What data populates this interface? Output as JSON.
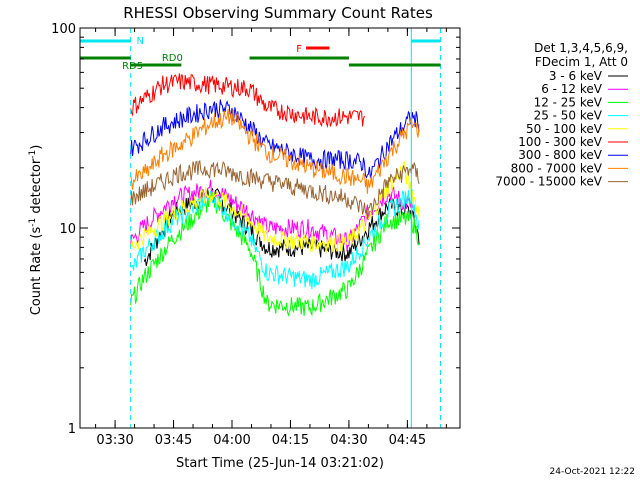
{
  "chart_data": {
    "type": "line",
    "title": "RHESSI Observing Summary Count Rates",
    "xlabel": "Start Time (25-Jun-14 03:21:02)",
    "ylabel_main": "Count Rate (s",
    "ylabel_exp": "-1",
    "ylabel_tail": " detector",
    "ylabel_exp2": "-1",
    "ylabel_close": ")",
    "y_scale": "log",
    "ylim": [
      1,
      100
    ],
    "xlim_minutes": [
      21,
      96
    ],
    "x_ticks": [
      {
        "m": 30,
        "label": "03:30"
      },
      {
        "m": 45,
        "label": "03:45"
      },
      {
        "m": 60,
        "label": "04:00"
      },
      {
        "m": 75,
        "label": "04:15"
      },
      {
        "m": 90,
        "label": "04:30"
      },
      {
        "m": 105,
        "label": "04:45"
      },
      {
        "m": 120,
        "label": "05:00"
      }
    ],
    "y_ticks": [
      {
        "v": 1,
        "label": "1"
      },
      {
        "v": 10,
        "label": "10"
      },
      {
        "v": 100,
        "label": "100"
      }
    ],
    "legend_header": [
      "Det 1,3,4,5,6,9,",
      "FDecim 1, Att 0"
    ],
    "series": [
      {
        "name": "3 - 6 keV",
        "color": "#000000",
        "points": [
          [
            37.5,
            6.8
          ],
          [
            45,
            12
          ],
          [
            55,
            15
          ],
          [
            64.5,
            10
          ],
          [
            69,
            8
          ],
          [
            80,
            8
          ],
          [
            90,
            7.5
          ],
          [
            95,
            10
          ],
          [
            100,
            13
          ],
          [
            106,
            12
          ],
          [
            108,
            9
          ]
        ]
      },
      {
        "name": "6 - 12 keV",
        "color": "#ff00ff",
        "points": [
          [
            34,
            8.5
          ],
          [
            37,
            10
          ],
          [
            45,
            14
          ],
          [
            55,
            16
          ],
          [
            64.5,
            12
          ],
          [
            69,
            10
          ],
          [
            80,
            10
          ],
          [
            90,
            8.5
          ],
          [
            95,
            12
          ],
          [
            100,
            15
          ],
          [
            106,
            13
          ],
          [
            107,
            11
          ]
        ]
      },
      {
        "name": "12 - 25 keV",
        "color": "#00ff00",
        "points": [
          [
            34,
            4.2
          ],
          [
            37,
            5.5
          ],
          [
            45,
            9
          ],
          [
            55,
            14
          ],
          [
            64.5,
            8
          ],
          [
            69,
            4.2
          ],
          [
            80,
            4
          ],
          [
            90,
            5
          ],
          [
            95,
            7.5
          ],
          [
            100,
            11
          ],
          [
            106,
            11
          ],
          [
            108,
            9
          ]
        ]
      },
      {
        "name": "25 - 50 keV",
        "color": "#00ffff",
        "points": [
          [
            34,
            6
          ],
          [
            37,
            7.5
          ],
          [
            45,
            11
          ],
          [
            55,
            14.5
          ],
          [
            64.5,
            9
          ],
          [
            69,
            6
          ],
          [
            80,
            5.5
          ],
          [
            90,
            6.5
          ],
          [
            95,
            9
          ],
          [
            100,
            12
          ],
          [
            106,
            15
          ],
          [
            108,
            10
          ]
        ]
      },
      {
        "name": "50 - 100 keV",
        "color": "#ffff00",
        "points": [
          [
            34,
            8
          ],
          [
            37,
            9
          ],
          [
            45,
            12
          ],
          [
            55,
            15
          ],
          [
            64.5,
            11
          ],
          [
            69,
            9
          ],
          [
            80,
            8.5
          ],
          [
            90,
            8.5
          ],
          [
            95,
            11
          ],
          [
            100,
            16
          ],
          [
            104,
            20
          ],
          [
            108,
            12
          ]
        ]
      },
      {
        "name": "100 - 300 keV",
        "color": "#ff0000",
        "points": [
          [
            34,
            40
          ],
          [
            38,
            45
          ],
          [
            42,
            52
          ],
          [
            46.5,
            54
          ],
          [
            64.5,
            50
          ],
          [
            69,
            40
          ],
          [
            80,
            36
          ],
          [
            90,
            36
          ],
          [
            94,
            36
          ]
        ]
      },
      {
        "name": "300 - 800 keV",
        "color": "#0000ff",
        "points": [
          [
            34,
            25
          ],
          [
            38,
            28
          ],
          [
            42,
            32
          ],
          [
            46.5,
            35
          ],
          [
            55,
            40
          ],
          [
            60,
            39
          ],
          [
            64.5,
            32
          ],
          [
            69,
            26
          ],
          [
            80,
            22
          ],
          [
            90,
            22
          ],
          [
            94,
            21
          ],
          [
            95,
            18
          ],
          [
            100,
            26
          ],
          [
            106,
            36
          ],
          [
            108,
            34
          ]
        ]
      },
      {
        "name": "800 - 7000 keV",
        "color": "#ff8000",
        "points": [
          [
            34,
            17
          ],
          [
            38,
            19
          ],
          [
            42,
            23
          ],
          [
            46.5,
            26
          ],
          [
            55,
            34
          ],
          [
            60,
            36
          ],
          [
            64.5,
            29
          ],
          [
            69,
            24
          ],
          [
            80,
            20
          ],
          [
            90,
            18
          ],
          [
            94,
            17
          ],
          [
            95,
            16
          ],
          [
            100,
            23
          ],
          [
            106,
            33
          ],
          [
            108,
            31
          ]
        ]
      },
      {
        "name": "7000 - 15000 keV",
        "color": "#996633",
        "points": [
          [
            34,
            14
          ],
          [
            46.5,
            19
          ],
          [
            55,
            20
          ],
          [
            64.5,
            18
          ],
          [
            90,
            14
          ],
          [
            95,
            12
          ],
          [
            100,
            17
          ],
          [
            106,
            20
          ],
          [
            108,
            18
          ]
        ]
      }
    ],
    "annotations": {
      "night_label": "N",
      "rd0_label": "RD0",
      "rd5_label": "RD5",
      "flare_label": "F"
    },
    "attenuator_bars": [
      [
        21,
        34
      ],
      [
        34,
        47
      ],
      [
        64.5,
        90
      ],
      [
        90,
        113.5
      ]
    ],
    "night_bars": [
      [
        21,
        34
      ],
      [
        106,
        113.5
      ]
    ],
    "flare_bar": [
      [
        79,
        85
      ]
    ],
    "saa_solid_lines": [
      21,
      106
    ],
    "saa_dashed_lines": [
      34,
      113.5
    ],
    "date_stamp": "24-Oct-2021 12:22"
  }
}
